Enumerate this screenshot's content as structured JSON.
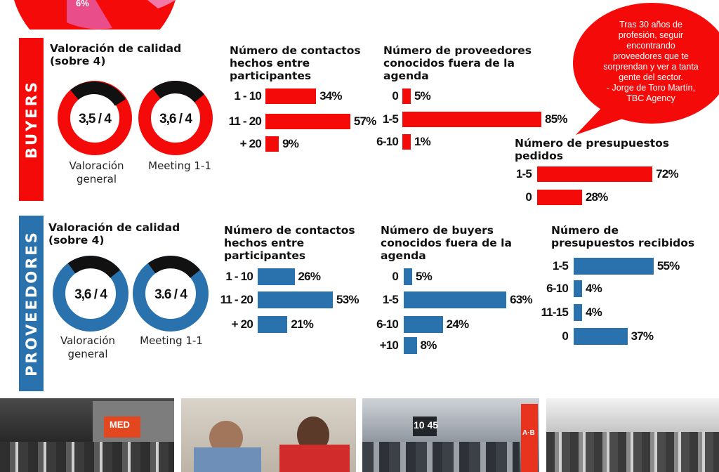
{
  "colors": {
    "buyers": "#f50a0a",
    "proveedores": "#2a72ad",
    "dark": "#111111",
    "pink": "#e94e8a"
  },
  "top_pie": {
    "label": "6%"
  },
  "quote": {
    "text": "Tras 30 años de\nprofesión, seguir\nencontrando\nproveedores que te\nsorprendan y ver a tanta\ngente del sector.\n- Jorge de Toro Martín,\nTBC Agency"
  },
  "buyers": {
    "sidebar_label": "BUYERS",
    "quality_title": "Valoración de calidad\n(sobre 4)",
    "donut_general": {
      "label": "3,5 / 4",
      "caption": "Valoración\ngeneral"
    },
    "donut_meeting": {
      "label": "3,6 / 4",
      "caption": "Meeting 1-1"
    }
  },
  "proveedores": {
    "sidebar_label": "PROVEEDORES",
    "quality_title": "Valoración de calidad\n(sobre 4)",
    "donut_general": {
      "label": "3,6 / 4",
      "caption": "Valoración\ngeneral"
    },
    "donut_meeting": {
      "label": "3.6 / 4",
      "caption": "Meeting 1-1"
    }
  },
  "chart_data": [
    {
      "id": "buyers_contactos",
      "type": "bar",
      "title": "Número de contactos\nhechos entre\nparticipantes",
      "categories": [
        "1 - 10",
        "11 - 20",
        "+ 20"
      ],
      "values": [
        34,
        57,
        9
      ],
      "labels": [
        "34%",
        "57%",
        "9%"
      ]
    },
    {
      "id": "buyers_proveedores",
      "type": "bar",
      "title": "Número de proveedores\nconocidos fuera de la\nagenda",
      "categories": [
        "0",
        "1-5",
        "6-10"
      ],
      "values": [
        5,
        85,
        1
      ],
      "labels": [
        "5%",
        "85%",
        "1%"
      ]
    },
    {
      "id": "buyers_presupuestos",
      "type": "bar",
      "title": "Número de presupuestos\npedidos",
      "categories": [
        "1-5",
        "0"
      ],
      "values": [
        72,
        28
      ],
      "labels": [
        "72%",
        "28%"
      ]
    },
    {
      "id": "prov_contactos",
      "type": "bar",
      "title": "Número de contactos\nhechos entre\nparticipantes",
      "categories": [
        "1 - 10",
        "11 - 20",
        "+ 20"
      ],
      "values": [
        26,
        53,
        21
      ],
      "labels": [
        "26%",
        "53%",
        "21%"
      ]
    },
    {
      "id": "prov_buyers",
      "type": "bar",
      "title": "Número de buyers\nconocidos fuera de la\nagenda",
      "categories": [
        "0",
        "1-5",
        "6-10",
        "+10"
      ],
      "values": [
        5,
        63,
        24,
        8
      ],
      "labels": [
        "5%",
        "63%",
        "24%",
        "8%"
      ]
    },
    {
      "id": "prov_presupuestos",
      "type": "bar",
      "title": "Número de\npresupuestos recibidos",
      "categories": [
        "1-5",
        "6-10",
        "11-15",
        "0"
      ],
      "values": [
        55,
        4,
        4,
        37
      ],
      "labels": [
        "55%",
        "4%",
        "4%",
        "37%"
      ]
    }
  ],
  "photos": {
    "sign_time": "10 45",
    "sign_med": "MED",
    "sign_ab": "A·B"
  }
}
